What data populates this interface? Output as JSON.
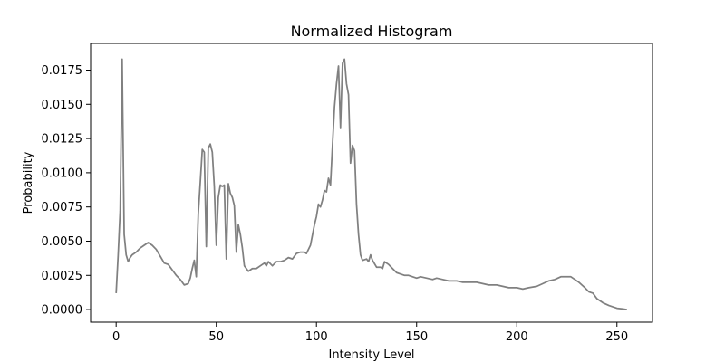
{
  "chart_data": {
    "type": "line",
    "title": "Normalized Histogram",
    "xlabel": "Intensity Level",
    "ylabel": "Probability",
    "xlim": [
      -12.75,
      267.75
    ],
    "ylim": [
      -0.00092,
      0.01945
    ],
    "xticks": [
      0,
      50,
      100,
      150,
      200,
      250
    ],
    "xtick_labels": [
      "0",
      "50",
      "100",
      "150",
      "200",
      "250"
    ],
    "yticks": [
      0.0,
      0.0025,
      0.005,
      0.0075,
      0.01,
      0.0125,
      0.015,
      0.0175
    ],
    "ytick_labels": [
      "0.0000",
      "0.0025",
      "0.0050",
      "0.0075",
      "0.0100",
      "0.0125",
      "0.0150",
      "0.0175"
    ],
    "grid": false,
    "series": [
      {
        "name": "histogram",
        "color": "#808080",
        "points": [
          [
            0,
            0.0012
          ],
          [
            1,
            0.004
          ],
          [
            2,
            0.0072
          ],
          [
            3,
            0.0183
          ],
          [
            4,
            0.0055
          ],
          [
            5,
            0.004
          ],
          [
            6,
            0.0035
          ],
          [
            7,
            0.0038
          ],
          [
            8,
            0.004
          ],
          [
            10,
            0.0042
          ],
          [
            12,
            0.0045
          ],
          [
            14,
            0.0047
          ],
          [
            16,
            0.0049
          ],
          [
            18,
            0.0047
          ],
          [
            20,
            0.0044
          ],
          [
            22,
            0.0039
          ],
          [
            24,
            0.0034
          ],
          [
            26,
            0.0033
          ],
          [
            28,
            0.0029
          ],
          [
            30,
            0.0025
          ],
          [
            32,
            0.0022
          ],
          [
            34,
            0.0018
          ],
          [
            36,
            0.0019
          ],
          [
            37,
            0.0023
          ],
          [
            38,
            0.003
          ],
          [
            39,
            0.0036
          ],
          [
            40,
            0.0024
          ],
          [
            41,
            0.007
          ],
          [
            42,
            0.0093
          ],
          [
            43,
            0.0117
          ],
          [
            44,
            0.0115
          ],
          [
            45,
            0.0046
          ],
          [
            46,
            0.0118
          ],
          [
            47,
            0.0121
          ],
          [
            48,
            0.0115
          ],
          [
            49,
            0.009
          ],
          [
            50,
            0.0047
          ],
          [
            51,
            0.0082
          ],
          [
            52,
            0.0091
          ],
          [
            53,
            0.009
          ],
          [
            54,
            0.0091
          ],
          [
            55,
            0.0037
          ],
          [
            56,
            0.0092
          ],
          [
            57,
            0.0085
          ],
          [
            58,
            0.0082
          ],
          [
            59,
            0.0076
          ],
          [
            60,
            0.0042
          ],
          [
            61,
            0.0062
          ],
          [
            62,
            0.0055
          ],
          [
            63,
            0.0045
          ],
          [
            64,
            0.0032
          ],
          [
            66,
            0.0028
          ],
          [
            68,
            0.003
          ],
          [
            70,
            0.003
          ],
          [
            72,
            0.0032
          ],
          [
            74,
            0.0034
          ],
          [
            75,
            0.0032
          ],
          [
            76,
            0.0035
          ],
          [
            78,
            0.0032
          ],
          [
            80,
            0.0035
          ],
          [
            82,
            0.0035
          ],
          [
            84,
            0.0036
          ],
          [
            86,
            0.0038
          ],
          [
            88,
            0.0037
          ],
          [
            90,
            0.0041
          ],
          [
            92,
            0.0042
          ],
          [
            94,
            0.0042
          ],
          [
            95,
            0.0041
          ],
          [
            97,
            0.0047
          ],
          [
            99,
            0.0062
          ],
          [
            100,
            0.0068
          ],
          [
            101,
            0.0077
          ],
          [
            102,
            0.0075
          ],
          [
            103,
            0.008
          ],
          [
            104,
            0.0087
          ],
          [
            105,
            0.0086
          ],
          [
            106,
            0.0096
          ],
          [
            107,
            0.0091
          ],
          [
            108,
            0.012
          ],
          [
            109,
            0.0148
          ],
          [
            110,
            0.0165
          ],
          [
            111,
            0.0178
          ],
          [
            112,
            0.0133
          ],
          [
            113,
            0.018
          ],
          [
            114,
            0.0183
          ],
          [
            115,
            0.0165
          ],
          [
            116,
            0.0157
          ],
          [
            117,
            0.0107
          ],
          [
            118,
            0.012
          ],
          [
            119,
            0.0116
          ],
          [
            120,
            0.0077
          ],
          [
            121,
            0.0055
          ],
          [
            122,
            0.004
          ],
          [
            123,
            0.0036
          ],
          [
            125,
            0.0037
          ],
          [
            126,
            0.0035
          ],
          [
            127,
            0.004
          ],
          [
            128,
            0.0036
          ],
          [
            130,
            0.0031
          ],
          [
            132,
            0.0031
          ],
          [
            133,
            0.003
          ],
          [
            134,
            0.0035
          ],
          [
            136,
            0.0033
          ],
          [
            138,
            0.003
          ],
          [
            140,
            0.0027
          ],
          [
            142,
            0.0026
          ],
          [
            144,
            0.0025
          ],
          [
            146,
            0.0025
          ],
          [
            148,
            0.0024
          ],
          [
            150,
            0.0023
          ],
          [
            152,
            0.0024
          ],
          [
            155,
            0.0023
          ],
          [
            158,
            0.0022
          ],
          [
            160,
            0.0023
          ],
          [
            163,
            0.0022
          ],
          [
            166,
            0.0021
          ],
          [
            170,
            0.0021
          ],
          [
            173,
            0.002
          ],
          [
            176,
            0.002
          ],
          [
            180,
            0.002
          ],
          [
            183,
            0.0019
          ],
          [
            186,
            0.0018
          ],
          [
            190,
            0.0018
          ],
          [
            193,
            0.0017
          ],
          [
            196,
            0.0016
          ],
          [
            200,
            0.0016
          ],
          [
            203,
            0.0015
          ],
          [
            206,
            0.0016
          ],
          [
            210,
            0.0017
          ],
          [
            213,
            0.0019
          ],
          [
            216,
            0.0021
          ],
          [
            219,
            0.0022
          ],
          [
            222,
            0.0024
          ],
          [
            225,
            0.0024
          ],
          [
            227,
            0.0024
          ],
          [
            229,
            0.0022
          ],
          [
            231,
            0.002
          ],
          [
            234,
            0.0016
          ],
          [
            236,
            0.0013
          ],
          [
            238,
            0.0012
          ],
          [
            240,
            0.0008
          ],
          [
            243,
            0.0005
          ],
          [
            246,
            0.0003
          ],
          [
            250,
            0.0001
          ],
          [
            253,
            5e-05
          ],
          [
            255,
            0.0
          ]
        ]
      }
    ]
  }
}
